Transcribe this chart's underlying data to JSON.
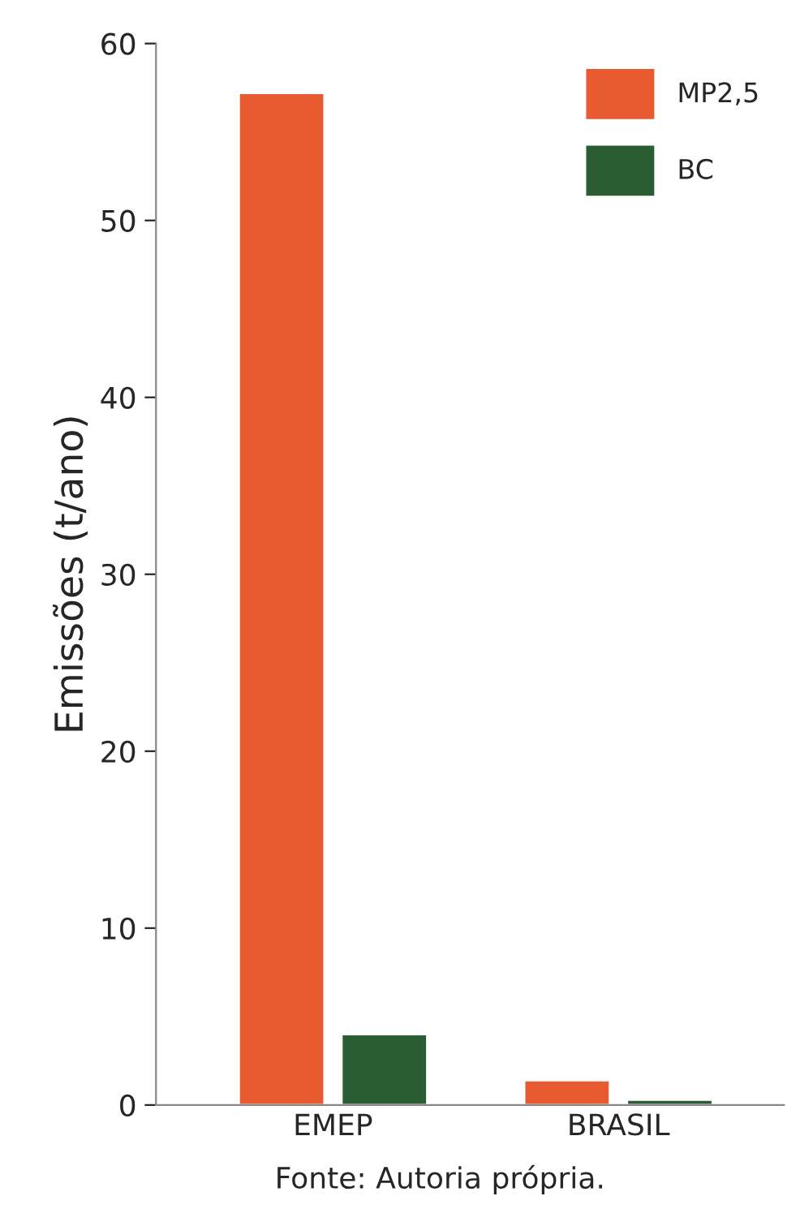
{
  "chart_data": {
    "type": "bar",
    "ylabel": "Emissões (t/ano)",
    "categories": [
      "EMEP",
      "BRASIL"
    ],
    "series": [
      {
        "name": "MP2,5",
        "color": "#e85a2f",
        "values": [
          57.2,
          1.4
        ]
      },
      {
        "name": "BC",
        "color": "#2a5e32",
        "values": [
          4.0,
          0.3
        ]
      }
    ],
    "ylim": [
      0,
      60
    ],
    "yticks": [
      0,
      10,
      20,
      30,
      40,
      50,
      60
    ],
    "grid": false,
    "legend": "top right",
    "annotations": [
      "Fonte: Autoria própria."
    ]
  }
}
